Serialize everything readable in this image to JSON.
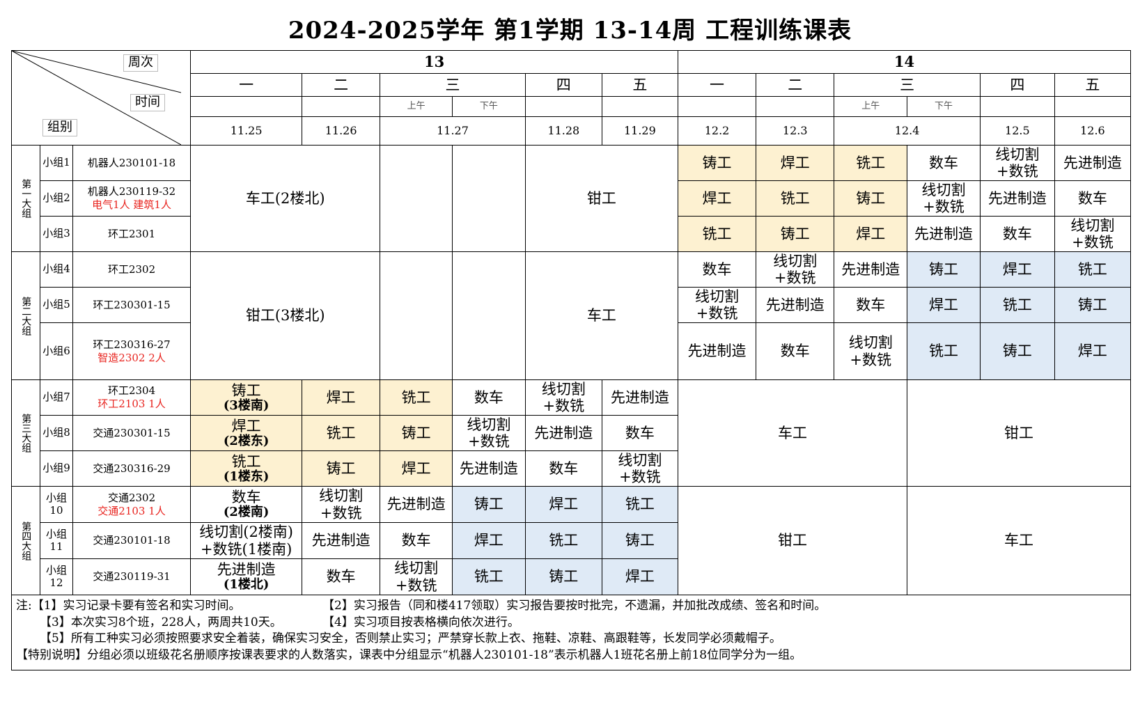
{
  "title": "2024-2025学年  第1学期  13-14周  工程训练课表",
  "header": {
    "week_label": "周次",
    "time_label": "时间",
    "group_label": "组别",
    "weeks": [
      "13",
      "14"
    ],
    "days": [
      "一",
      "二",
      "三",
      "四",
      "五",
      "一",
      "二",
      "三",
      "四",
      "五"
    ],
    "am": "上午",
    "pm": "下午",
    "dates": [
      "11.25",
      "11.26",
      "11.27",
      "11.28",
      "11.29",
      "12.2",
      "12.3",
      "12.4",
      "12.5",
      "12.6"
    ]
  },
  "big_groups": [
    "第一大组",
    "第二大组",
    "第三大组",
    "第四大组"
  ],
  "groups": [
    {
      "id": "小组1",
      "cls": "机器人230101-18",
      "extra": ""
    },
    {
      "id": "小组2",
      "cls": "机器人230119-32",
      "extra": "电气1人  建筑1人"
    },
    {
      "id": "小组3",
      "cls": "环工2301",
      "extra": ""
    },
    {
      "id": "小组4",
      "cls": "环工2302",
      "extra": ""
    },
    {
      "id": "小组5",
      "cls": "环工230301-15",
      "extra": ""
    },
    {
      "id": "小组6",
      "cls": "环工230316-27",
      "extra": "智造2302    2人"
    },
    {
      "id": "小组7",
      "cls": "环工2304",
      "extra": "环工2103  1人"
    },
    {
      "id": "小组8",
      "cls": "交通230301-15",
      "extra": ""
    },
    {
      "id": "小组9",
      "cls": "交通230316-29",
      "extra": ""
    },
    {
      "id": "小组10",
      "cls": "交通2302",
      "extra": "交通2103  1人"
    },
    {
      "id": "小组11",
      "cls": "交通230101-18",
      "extra": ""
    },
    {
      "id": "小组12",
      "cls": "交通230119-31",
      "extra": ""
    }
  ],
  "blocks": {
    "g1_w13_a": "车工(2楼北)",
    "g1_w13_b": "钳工",
    "g2_w13_a": "钳工(3楼北)",
    "g2_w13_b": "车工",
    "g3_w14_a": "车工",
    "g3_w14_b": "钳工",
    "g4_w14_a": "钳工",
    "g4_w14_b": "车工"
  },
  "w14_g1": [
    [
      "铸工",
      "焊工",
      "铣工",
      "数车",
      "线切割\n+数铣",
      "先进制造"
    ],
    [
      "焊工",
      "铣工",
      "铸工",
      "线切割\n+数铣",
      "先进制造",
      "数车"
    ],
    [
      "铣工",
      "铸工",
      "焊工",
      "先进制造",
      "数车",
      "线切割\n+数铣"
    ]
  ],
  "w14_g2": [
    [
      "数车",
      "线切割\n+数铣",
      "先进制造",
      "铸工",
      "焊工",
      "铣工"
    ],
    [
      "线切割\n+数铣",
      "先进制造",
      "数车",
      "焊工",
      "铣工",
      "铸工"
    ],
    [
      "先进制造",
      "数车",
      "线切割\n+数铣",
      "铣工",
      "铸工",
      "焊工"
    ]
  ],
  "w13_g3": [
    [
      {
        "t": "铸工",
        "s": "(3楼南)"
      },
      "焊工",
      "铣工",
      "数车",
      "线切割\n+数铣",
      "先进制造"
    ],
    [
      {
        "t": "焊工",
        "s": "(2楼东)"
      },
      "铣工",
      "铸工",
      "线切割\n+数铣",
      "先进制造",
      "数车"
    ],
    [
      {
        "t": "铣工",
        "s": "(1楼东)"
      },
      "铸工",
      "焊工",
      "先进制造",
      "数车",
      "线切割\n+数铣"
    ]
  ],
  "w13_g4": [
    [
      {
        "t": "数车",
        "s": "(2楼南)"
      },
      "线切割\n+数铣",
      "先进制造",
      "铸工",
      "焊工",
      "铣工"
    ],
    [
      "线切割(2楼南)\n+数铣(1楼南)",
      "先进制造",
      "数车",
      "焊工",
      "铣工",
      "铸工"
    ],
    [
      {
        "t": "先进制造",
        "s": "(1楼北)"
      },
      "数车",
      "线切割\n+数铣",
      "铣工",
      "铸工",
      "焊工"
    ]
  ],
  "notes": {
    "prefix": "注:",
    "n1": "【1】实习记录卡要有签名和实习时间。",
    "n2": "【2】实习报告（同和楼417领取）实习报告要按时批完，不遗漏，并加批改成绩、签名和时间。",
    "n3": "【3】本次实习8个班，228人，两周共10天。",
    "n4": "【4】实习项目按表格横向依次进行。",
    "n5": "【5】所有工种实习必须按照要求安全着装，确保实习安全，否则禁止实习；严禁穿长款上衣、拖鞋、凉鞋、高跟鞋等，长发同学必须戴帽子。",
    "special": "【特别说明】分组必须以班级花名册顺序按课表要求的人数落实，课表中分组显示“机器人230101-18”表示机器人1班花名册上前18位同学分为一组。"
  },
  "colors": {
    "yellow": "#fdf1d1",
    "blue": "#dfeaf6",
    "red": "#e8231e"
  }
}
